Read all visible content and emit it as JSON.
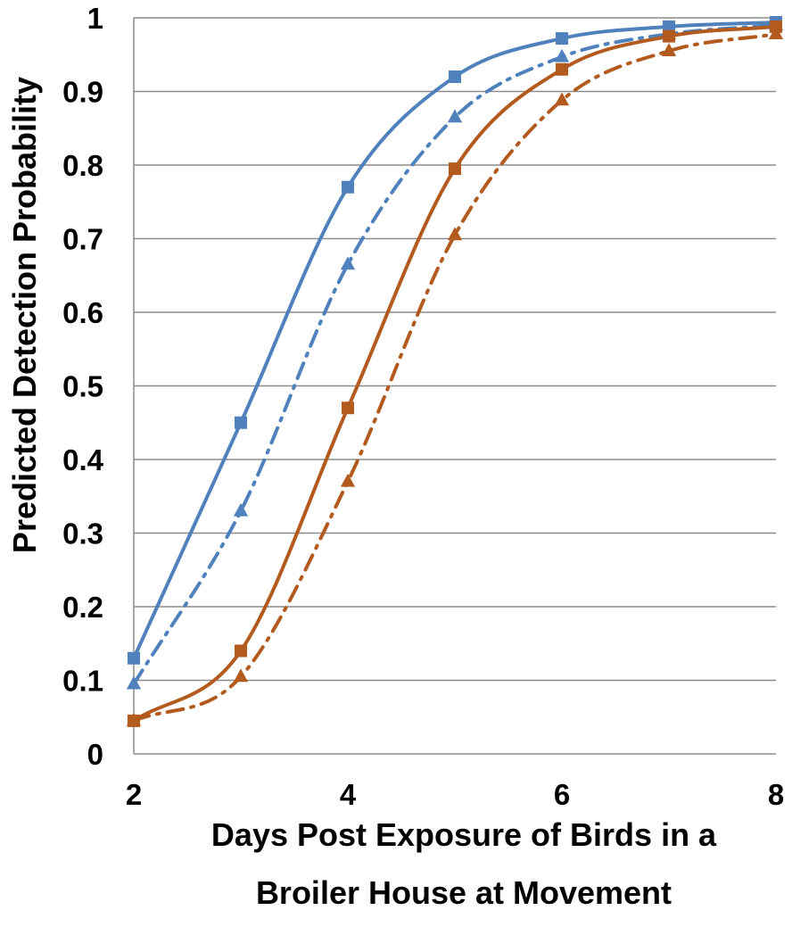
{
  "chart_data": {
    "type": "line",
    "title": "",
    "xlabel_lines": [
      "Days Post Exposure of Birds in a",
      "Broiler House at Movement"
    ],
    "ylabel": "Predicted  Detection  Probability",
    "xlim": [
      2,
      8
    ],
    "ylim": [
      0,
      1
    ],
    "x_ticks": [
      2,
      4,
      6,
      8
    ],
    "x_tick_labels": [
      "2",
      "4",
      "6",
      "8"
    ],
    "y_ticks": [
      0,
      0.1,
      0.2,
      0.3,
      0.4,
      0.5,
      0.6,
      0.7,
      0.8,
      0.9,
      1
    ],
    "y_tick_labels": [
      "0",
      "0.1",
      "0.2",
      "0.3",
      "0.4",
      "0.5",
      "0.6",
      "0.7",
      "0.8",
      "0.9",
      "1"
    ],
    "grid": {
      "horizontal": true,
      "vertical": false
    },
    "legend": "none",
    "series": [
      {
        "color": "#4F81BD",
        "line_style": "solid",
        "marker": "square",
        "x": [
          2,
          3,
          4,
          5,
          6,
          7,
          8
        ],
        "y": [
          0.13,
          0.45,
          0.77,
          0.92,
          0.972,
          0.988,
          0.994
        ]
      },
      {
        "color": "#4F81BD",
        "line_style": "dash-dot",
        "marker": "triangle",
        "x": [
          2,
          3,
          4,
          5,
          6,
          7,
          8
        ],
        "y": [
          0.095,
          0.33,
          0.665,
          0.865,
          0.947,
          0.978,
          0.99
        ]
      },
      {
        "color": "#B35A1F",
        "line_style": "solid",
        "marker": "square",
        "x": [
          2,
          3,
          4,
          5,
          6,
          7,
          8
        ],
        "y": [
          0.045,
          0.14,
          0.47,
          0.795,
          0.93,
          0.975,
          0.988
        ]
      },
      {
        "color": "#B35A1F",
        "line_style": "dash-dot",
        "marker": "triangle",
        "x": [
          2,
          3,
          4,
          5,
          6,
          7,
          8
        ],
        "y": [
          0.045,
          0.105,
          0.37,
          0.705,
          0.888,
          0.955,
          0.978
        ]
      }
    ]
  }
}
